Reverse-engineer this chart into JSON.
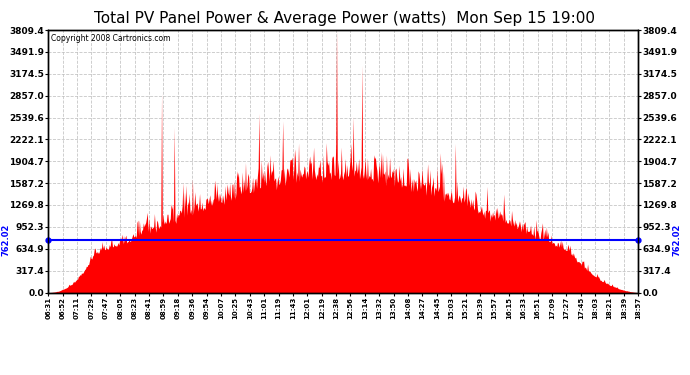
{
  "title": "Total PV Panel Power & Average Power (watts)  Mon Sep 15 19:00",
  "copyright": "Copyright 2008 Cartronics.com",
  "average_value": 762.02,
  "y_max": 3809.4,
  "y_min": 0.0,
  "yticks": [
    0.0,
    317.4,
    634.9,
    952.3,
    1269.8,
    1587.2,
    1904.7,
    2222.1,
    2539.6,
    2857.0,
    3174.5,
    3491.9,
    3809.4
  ],
  "fill_color": "#FF0000",
  "line_color": "#FF0000",
  "avg_line_color": "#0000FF",
  "background_color": "#FFFFFF",
  "grid_color": "#C0C0C0",
  "title_fontsize": 11,
  "xtick_labels": [
    "06:31",
    "06:52",
    "07:11",
    "07:29",
    "07:47",
    "08:05",
    "08:23",
    "08:41",
    "08:59",
    "09:18",
    "09:36",
    "09:54",
    "10:07",
    "10:25",
    "10:43",
    "11:01",
    "11:19",
    "11:43",
    "12:01",
    "12:19",
    "12:38",
    "12:56",
    "13:14",
    "13:32",
    "13:50",
    "14:08",
    "14:27",
    "14:45",
    "15:03",
    "15:21",
    "15:39",
    "15:57",
    "16:15",
    "16:33",
    "16:51",
    "17:09",
    "17:27",
    "17:45",
    "18:03",
    "18:21",
    "18:39",
    "18:57"
  ]
}
